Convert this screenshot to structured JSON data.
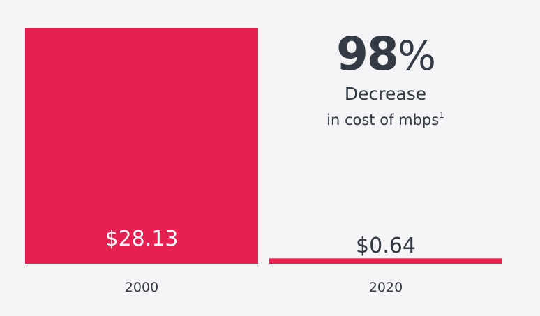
{
  "chart_data": {
    "type": "bar",
    "categories": [
      "2000",
      "2020"
    ],
    "values": [
      28.13,
      0.64
    ],
    "data_labels": [
      "$28.13",
      "$0.64"
    ],
    "title": "",
    "xlabel": "",
    "ylabel": "",
    "ylim": [
      0,
      28.13
    ],
    "grid": false,
    "bar_color": "#e52152",
    "annotation": {
      "value": "98",
      "unit": "%",
      "line1": "Decrease",
      "line2": "in cost of mbps",
      "footnote": "1"
    }
  }
}
